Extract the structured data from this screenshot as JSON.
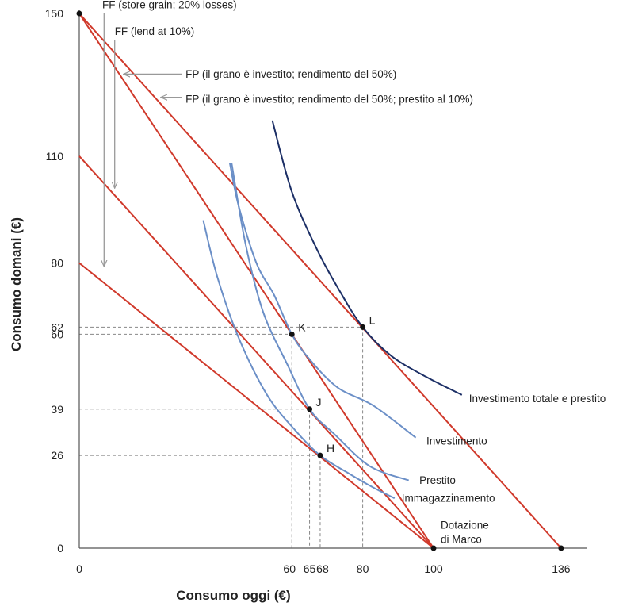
{
  "chart_data": {
    "type": "line",
    "xlabel": "Consumo oggi (€)",
    "ylabel": "Consumo domani (€)",
    "xlim": [
      0,
      150
    ],
    "ylim": [
      0,
      150
    ],
    "xticks": [
      0,
      60,
      65,
      68,
      80,
      100,
      136
    ],
    "xtick_labels": [
      "0",
      "60",
      "65",
      "68",
      "80",
      "100",
      "136"
    ],
    "yticks": [
      0,
      26,
      39,
      60,
      62,
      80,
      110,
      150
    ],
    "ytick_labels": [
      "0",
      "26",
      "39",
      "60",
      "62",
      "80",
      "110",
      "150"
    ],
    "grid": false,
    "colors": {
      "frontier": "#d0392b",
      "indifference": "#6b8fc7",
      "indifference_top": "#1c2f66",
      "arrow": "#999999",
      "guide": "#888888",
      "axis": "#555555"
    },
    "frontiers": [
      {
        "points": [
          [
            0,
            150
          ],
          [
            100,
            0
          ]
        ]
      },
      {
        "points": [
          [
            0,
            150
          ],
          [
            136,
            0
          ]
        ]
      },
      {
        "points": [
          [
            0,
            110
          ],
          [
            100,
            0
          ]
        ]
      },
      {
        "points": [
          [
            0,
            80
          ],
          [
            100,
            0
          ]
        ]
      }
    ],
    "indifference_curves": [
      {
        "name": "Investimento totale e prestito",
        "points": [
          [
            54.5,
            120
          ],
          [
            60,
            100
          ],
          [
            67,
            84
          ],
          [
            73,
            73
          ],
          [
            80,
            62
          ],
          [
            88,
            54
          ],
          [
            98,
            48
          ],
          [
            108,
            43
          ]
        ]
      },
      {
        "name": "Investimento",
        "points": [
          [
            42.5,
            108
          ],
          [
            45,
            96
          ],
          [
            50,
            80
          ],
          [
            55,
            71
          ],
          [
            60,
            60
          ],
          [
            65,
            53
          ],
          [
            73,
            45
          ],
          [
            83,
            40
          ],
          [
            95,
            31
          ]
        ]
      },
      {
        "name": "Prestito",
        "points": [
          [
            43,
            108
          ],
          [
            47,
            85
          ],
          [
            52,
            66
          ],
          [
            59,
            51
          ],
          [
            65,
            39
          ],
          [
            72,
            32
          ],
          [
            82,
            23
          ],
          [
            93,
            19
          ]
        ]
      },
      {
        "name": "Immagazzinamento",
        "points": [
          [
            35,
            92
          ],
          [
            39,
            76
          ],
          [
            45,
            59
          ],
          [
            53,
            43
          ],
          [
            61,
            33
          ],
          [
            68,
            26
          ],
          [
            76,
            21
          ],
          [
            83,
            17
          ],
          [
            89,
            14
          ]
        ]
      }
    ],
    "points": [
      {
        "label": "L",
        "x": 80,
        "y": 62
      },
      {
        "label": "K",
        "x": 60,
        "y": 60
      },
      {
        "label": "J",
        "x": 65,
        "y": 39
      },
      {
        "label": "H",
        "x": 68,
        "y": 26
      },
      {
        "label": "",
        "x": 0,
        "y": 150
      },
      {
        "label": "",
        "x": 100,
        "y": 0
      },
      {
        "label": "",
        "x": 136,
        "y": 0
      }
    ],
    "guides": [
      {
        "x": 80,
        "y": 62
      },
      {
        "x": 60,
        "y": 60
      },
      {
        "x": 65,
        "y": 39
      },
      {
        "x": 68,
        "y": 26
      }
    ],
    "annotations": [
      {
        "text": "FF (store grain; 20% losses)",
        "text_at": [
          6.5,
          151.5
        ],
        "arrow_from": [
          7,
          150
        ],
        "arrow_to": [
          7,
          79
        ]
      },
      {
        "text": "FF (lend at 10%)",
        "text_at": [
          10,
          144
        ],
        "arrow_from": [
          10,
          142.5
        ],
        "arrow_to": [
          10,
          101
        ]
      },
      {
        "text": "FP (il grano è investito; rendimento del 50%)",
        "text_at": [
          30,
          132
        ],
        "arrow_from": [
          29,
          133
        ],
        "arrow_to": [
          12.5,
          133
        ]
      },
      {
        "text": "FP (il grano è investito; rendimento del 50%; prestito al 10%)",
        "text_at": [
          30,
          125
        ],
        "arrow_from": [
          29,
          126.5
        ],
        "arrow_to": [
          23,
          126.5
        ]
      },
      {
        "text": "Investimento totale e prestito",
        "text_at": [
          110,
          41
        ]
      },
      {
        "text": "Investimento",
        "text_at": [
          98,
          29
        ]
      },
      {
        "text": "Prestito",
        "text_at": [
          96,
          18
        ]
      },
      {
        "text": "Immagazzinamento",
        "text_at": [
          91,
          13
        ]
      },
      {
        "text": "Dotazione",
        "text_at": [
          102,
          5.5
        ]
      },
      {
        "text": "di Marco",
        "text_at": [
          102,
          1.5
        ]
      }
    ]
  }
}
